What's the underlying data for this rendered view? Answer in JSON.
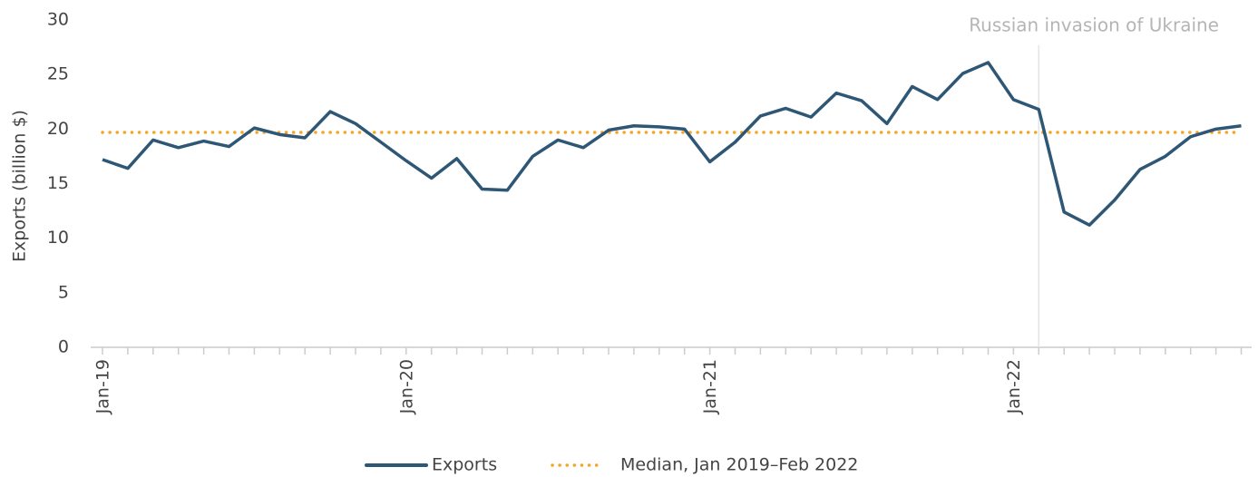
{
  "chart_data": {
    "type": "line",
    "y_label": "Exports (billion $)",
    "categories": [
      "Jan-19",
      null,
      null,
      null,
      null,
      null,
      null,
      null,
      null,
      null,
      null,
      null,
      "Jan-20",
      null,
      null,
      null,
      null,
      null,
      null,
      null,
      null,
      null,
      null,
      null,
      "Jan-21",
      null,
      null,
      null,
      null,
      null,
      null,
      null,
      null,
      null,
      null,
      null,
      "Jan-22",
      null,
      null,
      null,
      null,
      null,
      null,
      null,
      null,
      null
    ],
    "series": [
      {
        "name": "Exports",
        "color": "#2e5675",
        "values": [
          17.2,
          16.4,
          19.0,
          18.3,
          18.9,
          18.4,
          20.1,
          19.5,
          19.2,
          21.6,
          20.5,
          18.8,
          17.1,
          15.5,
          17.3,
          14.5,
          14.4,
          17.5,
          19.0,
          18.3,
          19.9,
          20.3,
          20.2,
          20.0,
          17.0,
          18.8,
          21.2,
          21.9,
          21.1,
          23.3,
          22.6,
          20.5,
          23.9,
          22.7,
          25.1,
          26.1,
          22.7,
          21.8,
          12.4,
          11.2,
          13.5,
          16.3,
          17.5,
          19.3,
          20.0,
          20.3
        ]
      }
    ],
    "median": {
      "name": "Median, Jan 2019–Feb 2022",
      "color": "#f5a623",
      "value": 19.7
    },
    "annotation": {
      "text": "Russian invasion of Ukraine",
      "index": 37
    },
    "ylim": [
      0,
      30
    ],
    "yticks": [
      0,
      5,
      10,
      15,
      20,
      25,
      30
    ]
  }
}
